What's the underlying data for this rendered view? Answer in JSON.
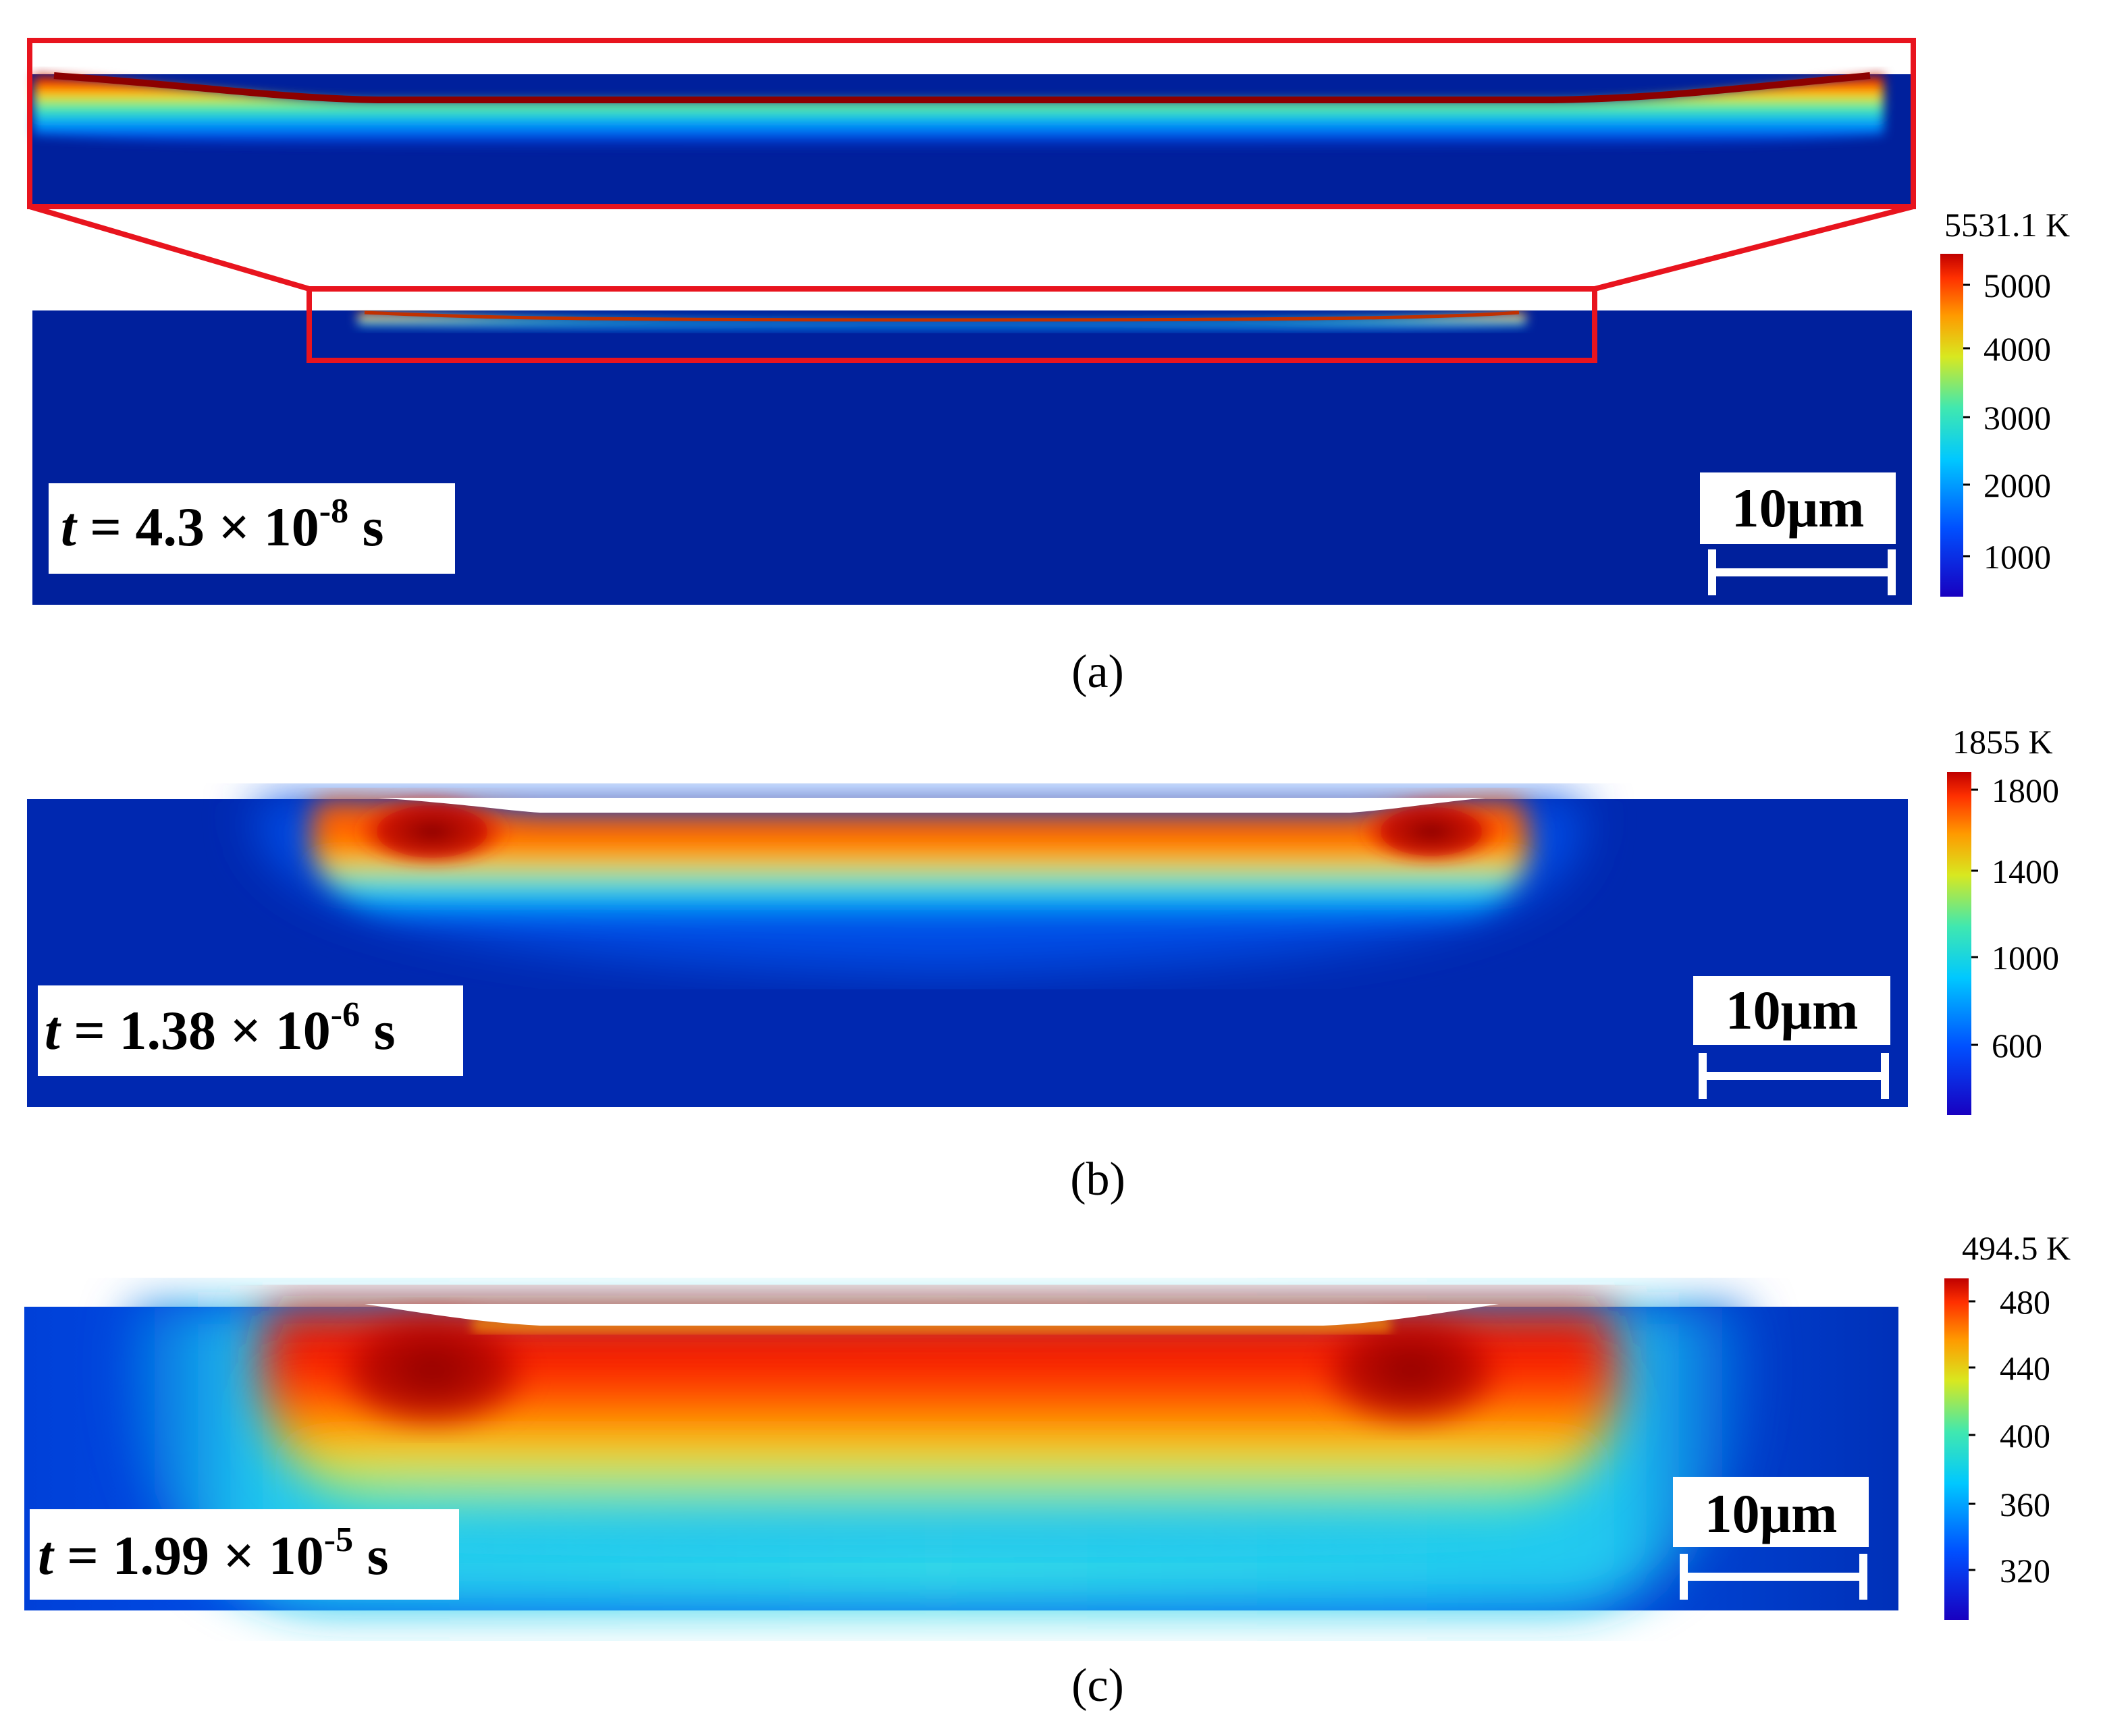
{
  "panels": [
    {
      "id": "a",
      "caption": "(a)",
      "time": {
        "t": "t",
        "eq": " = 4.3 × 10",
        "exp": "-8",
        "unit": " s"
      },
      "scale_bar_label": "10μm",
      "colorbar": {
        "max_label": "5531.1 K",
        "ticks": [
          "5000",
          "4000",
          "3000",
          "2000",
          "1000"
        ]
      }
    },
    {
      "id": "b",
      "caption": "(b)",
      "time": {
        "t": "t",
        "eq": " = 1.38 × 10",
        "exp": "-6",
        "unit": " s"
      },
      "scale_bar_label": "10μm",
      "colorbar": {
        "max_label": "1855 K",
        "ticks": [
          "1800",
          "1400",
          "1000",
          "600"
        ]
      }
    },
    {
      "id": "c",
      "caption": "(c)",
      "time": {
        "t": "t",
        "eq": " = 1.99 × 10",
        "exp": "-5",
        "unit": " s"
      },
      "scale_bar_label": "10μm",
      "colorbar": {
        "max_label": "494.5 K",
        "ticks": [
          "480",
          "440",
          "400",
          "360",
          "320"
        ]
      }
    }
  ],
  "colors": {
    "field_base": "#00209c",
    "zoom_frame": "#e8141e",
    "colormap": [
      "#1a00b8",
      "#0040ff",
      "#00c0ff",
      "#40e0b0",
      "#c8e830",
      "#ffe000",
      "#ff8000",
      "#f02000",
      "#8c0000"
    ]
  }
}
